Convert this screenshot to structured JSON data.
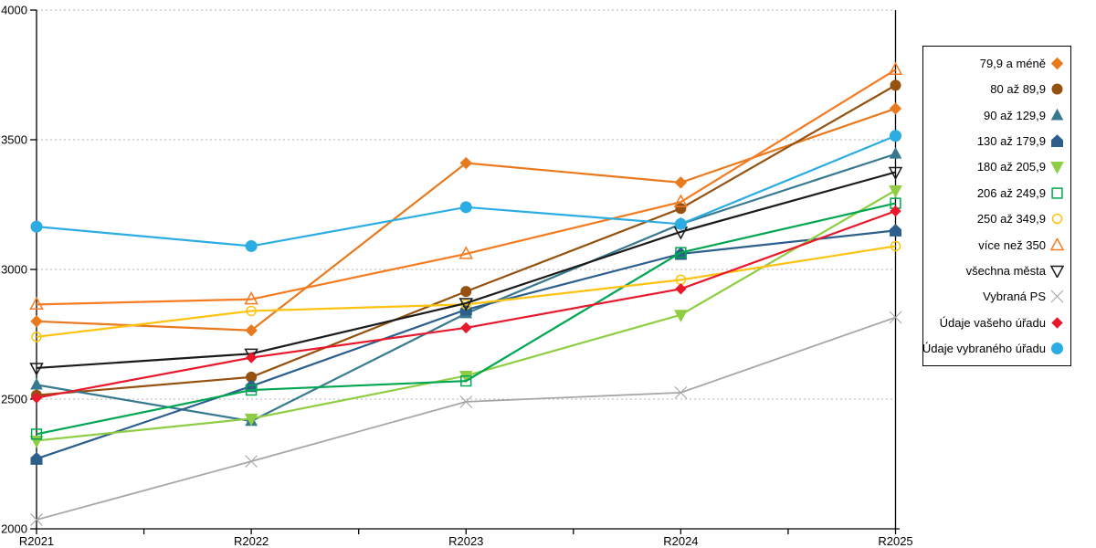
{
  "chart_data": {
    "type": "line",
    "title": "",
    "categories": [
      "R2021",
      "R2022",
      "R2023",
      "R2024",
      "R2025"
    ],
    "y_axis": {
      "ticks": [
        2000,
        2500,
        3000,
        3500,
        4000
      ],
      "range": [
        2000,
        4000
      ]
    },
    "grid": {
      "horizontal": true,
      "style": "dotted"
    },
    "legend_position": "right",
    "series": [
      {
        "name": "79,9 a méně",
        "marker": "diamond",
        "open": false,
        "size": 12,
        "color": "#E8791D",
        "values": [
          2800,
          2765,
          3410,
          3335,
          3620
        ]
      },
      {
        "name": "80 až 89,9",
        "marker": "circle",
        "open": false,
        "size": 12,
        "color": "#94510F",
        "values": [
          2515,
          2585,
          2915,
          3235,
          3710
        ]
      },
      {
        "name": "90 až 129,9",
        "marker": "triangle-up",
        "open": false,
        "size": 12,
        "color": "#37798E",
        "values": [
          2555,
          2415,
          2830,
          3175,
          3445
        ]
      },
      {
        "name": "130 až 179,9",
        "marker": "pentagon",
        "open": false,
        "size": 12,
        "color": "#2C5F8C",
        "values": [
          2270,
          2550,
          2845,
          3060,
          3150
        ]
      },
      {
        "name": "180 až 205,9",
        "marker": "triangle-down",
        "open": false,
        "size": 13,
        "color": "#8FCE44",
        "values": [
          2340,
          2425,
          2590,
          2825,
          3305
        ]
      },
      {
        "name": "206 až 249,9",
        "marker": "square",
        "open": true,
        "size": 12,
        "color": "#00A651",
        "values": [
          2365,
          2535,
          2570,
          3065,
          3255
        ]
      },
      {
        "name": "250 až 349,9",
        "marker": "circle",
        "open": true,
        "size": 11,
        "color": "#FFC20E",
        "values": [
          2740,
          2840,
          2865,
          2960,
          3090
        ]
      },
      {
        "name": "více než 350",
        "marker": "triangle-up",
        "open": true,
        "size": 13,
        "color": "#F47B20",
        "values": [
          2865,
          2885,
          3060,
          3260,
          3770
        ]
      },
      {
        "name": "všechna města",
        "marker": "triangle-down",
        "open": true,
        "size": 13,
        "color": "#1A1A1A",
        "values": [
          2620,
          2675,
          2870,
          3145,
          3375
        ]
      },
      {
        "name": "Vybraná PS",
        "marker": "x",
        "open": true,
        "size": 13,
        "color": "#A6A6A6",
        "values": [
          2035,
          2260,
          2490,
          2525,
          2815
        ]
      },
      {
        "name": "Údaje vašeho úřadu",
        "marker": "diamond",
        "open": false,
        "size": 11,
        "color": "#E8192C",
        "values": [
          2505,
          2660,
          2775,
          2925,
          3225
        ]
      },
      {
        "name": "Údaje vybraného úřadu",
        "marker": "circle",
        "open": false,
        "size": 13,
        "color": "#2BACE2",
        "values": [
          3165,
          3090,
          3240,
          3175,
          3515
        ]
      }
    ]
  },
  "colors": {
    "background": "#FFFFFF",
    "axis": "#000000",
    "grid": "#B3B3B3"
  }
}
